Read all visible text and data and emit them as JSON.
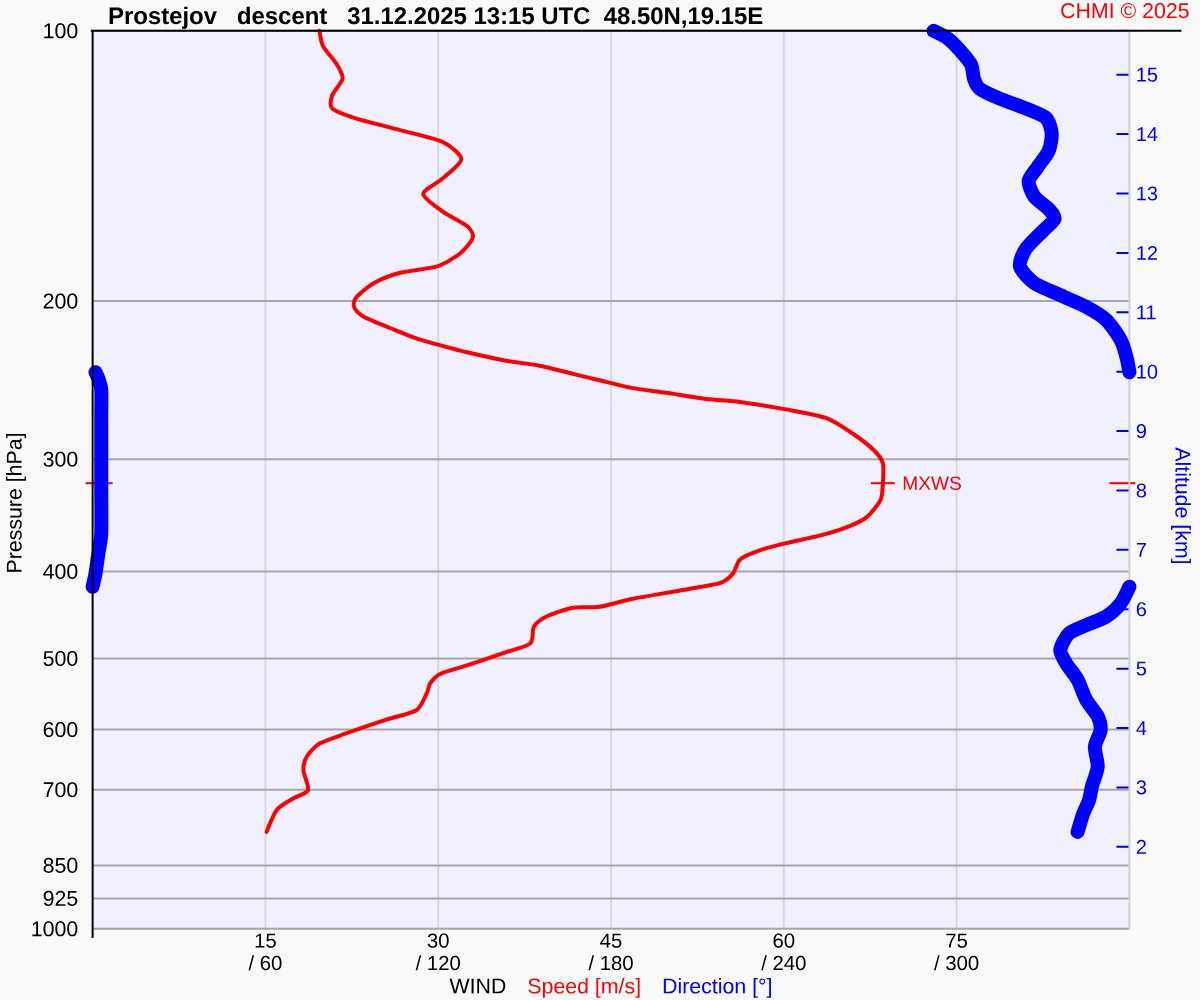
{
  "chart_data": {
    "type": "line",
    "orientation": "horizontal",
    "title": "Prostejov   descent   31.12.2025 13:15 UTC  48.50N,19.15E",
    "xlabel": "WIND",
    "ylabel": "Pressure [hPa]",
    "y2label": "Altitude [km]",
    "annotations": [
      "CHMI © 2025",
      {
        "text": "MXWS",
        "x": 68.6,
        "y": 319
      }
    ],
    "series": [
      {
        "name": "Speed [m/s]",
        "color": "#ff0000",
        "x": [
          100,
          104,
          109,
          113,
          118,
          122,
          125,
          129,
          133,
          139,
          146,
          152,
          159,
          165,
          170,
          177,
          183,
          186,
          191,
          198,
          203,
          208,
          215,
          220,
          224,
          228,
          233,
          236,
          241,
          245,
          250,
          253,
          257,
          259,
          264,
          270,
          281,
          293,
          303,
          319,
          333,
          348,
          357,
          365,
          372,
          379,
          388,
          402,
          412,
          420,
          429,
          438,
          439,
          449,
          461,
          481,
          492,
          509,
          520,
          533,
          547,
          571,
          585,
          606,
          622,
          643,
          666,
          701,
          716,
          737,
          780
        ],
        "values": [
          19.7,
          20.0,
          21.2,
          21.7,
          20.8,
          20.8,
          22.7,
          26.7,
          30.4,
          32.0,
          30.4,
          28.7,
          30.4,
          32.5,
          33.0,
          31.9,
          29.9,
          26.7,
          24.4,
          22.9,
          22.7,
          23.5,
          26.1,
          28.1,
          30.2,
          32.5,
          35.9,
          38.8,
          41.7,
          44.0,
          46.9,
          49.8,
          53.3,
          56.2,
          60.2,
          63.7,
          66.0,
          67.8,
          68.6,
          68.6,
          68.4,
          67.2,
          65.5,
          63.1,
          60.2,
          57.9,
          56.2,
          55.6,
          54.5,
          51.0,
          46.9,
          44.0,
          41.7,
          39.4,
          38.3,
          38.0,
          35.9,
          32.5,
          30.2,
          29.3,
          29.0,
          28.1,
          25.5,
          22.0,
          19.7,
          18.6,
          18.3,
          18.7,
          17.4,
          16.0,
          15.1
        ]
      },
      {
        "name": "Direction [°]",
        "color": "#0000ff",
        "axis": "x2",
        "x": [
          100,
          102,
          105,
          109,
          113,
          116,
          119,
          122,
          125,
          130,
          136,
          142,
          147,
          153,
          158,
          162,
          167,
          175,
          183,
          191,
          197,
          203,
          210,
          221,
          231,
          240,
          null,
          240,
          244,
          251,
          271,
          322,
          363,
          382,
          402,
          416,
          null,
          416,
          434,
          449,
          459,
          469,
          489,
          506,
          528,
          556,
          580,
          601,
          627,
          660,
          694,
          719,
          744,
          780
        ],
        "values": [
          292,
          297,
          301,
          305,
          306,
          308,
          315,
          324,
          331,
          333,
          332,
          328,
          325,
          327,
          332,
          334,
          330,
          324,
          322,
          327,
          336,
          345,
          352,
          357,
          359,
          360,
          null,
          1,
          2,
          3,
          3,
          3,
          3,
          2,
          1,
          0,
          null,
          360,
          357,
          352,
          345,
          339,
          336,
          338,
          342,
          345,
          349,
          350,
          348,
          349,
          347,
          346,
          344,
          342
        ]
      }
    ],
    "xlim": [
      0,
      90
    ],
    "xticks": [
      15,
      30,
      45,
      60,
      75
    ],
    "x2lim": [
      0,
      360
    ],
    "x2ticks": [
      {
        "value": 60,
        "label": "/ 60"
      },
      {
        "value": 120,
        "label": "/ 120"
      },
      {
        "value": 180,
        "label": "/ 180"
      },
      {
        "value": 240,
        "label": "/ 240"
      },
      {
        "value": 300,
        "label": "/ 300"
      }
    ],
    "ylim": [
      1000,
      100
    ],
    "yticks": [
      100,
      200,
      300,
      400,
      500,
      600,
      700,
      850,
      925,
      1000
    ],
    "y2lim": [
      0.62,
      15.74
    ],
    "y2ticks": [
      2,
      3,
      4,
      5,
      6,
      7,
      8,
      9,
      10,
      11,
      12,
      13,
      14,
      15
    ],
    "log": "y",
    "grid": true,
    "legend": "bottom"
  }
}
